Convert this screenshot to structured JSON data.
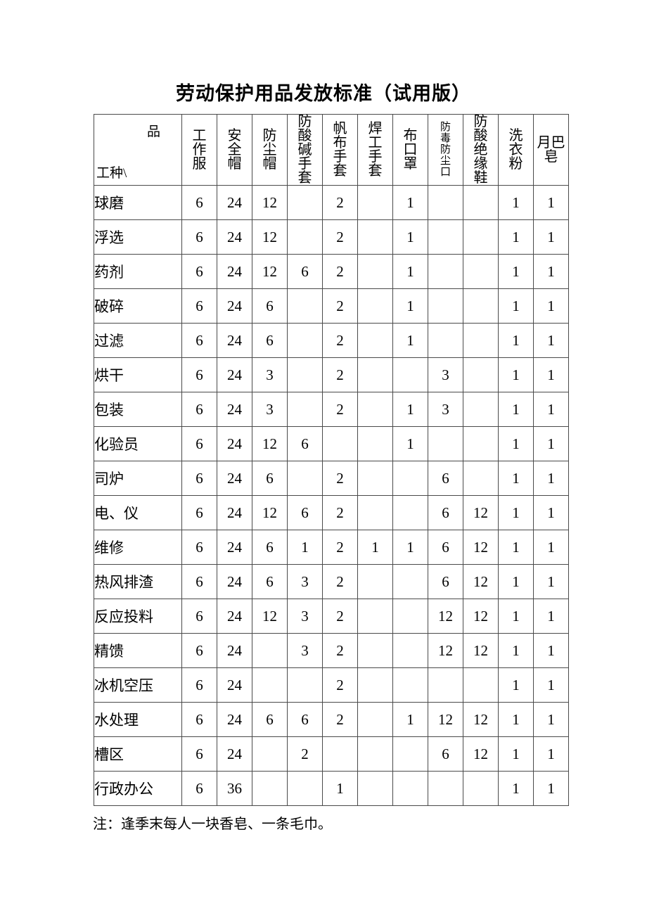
{
  "title": "劳动保护用品发放标准（试用版）",
  "note": "注：逢季末每人一块香皂、一条毛巾。",
  "table": {
    "corner": {
      "top_right": "品",
      "bottom_left": "工种\\"
    },
    "columns": [
      {
        "name": "工作服",
        "text": "工\n作\n服",
        "small": false
      },
      {
        "name": "安全帽",
        "text": "安\n全\n帽",
        "small": false
      },
      {
        "name": "防尘帽",
        "text": "防\n尘\n帽",
        "small": false
      },
      {
        "name": "防酸碱手套",
        "text": "防\n酸\n碱\n手\n套",
        "small": false
      },
      {
        "name": "帆布手套",
        "text": "帆\n布\n手\n套",
        "small": false
      },
      {
        "name": "焊工手套",
        "text": "焊\n工\n手\n套",
        "small": false
      },
      {
        "name": "布口罩",
        "text": "布\n口\n罩",
        "small": false
      },
      {
        "name": "防毒防尘口",
        "text": "防\n毒\n防\n尘\n口",
        "small": true
      },
      {
        "name": "防酸绝缘鞋",
        "text": "防\n酸\n绝\n缘\n鞋",
        "small": false
      },
      {
        "name": "洗衣粉",
        "text": "洗\n衣\n粉",
        "small": false
      },
      {
        "name": "月巴皂",
        "text": "月巴\n皂",
        "small": false
      }
    ],
    "rows": [
      {
        "label": "球磨",
        "values": [
          "6",
          "24",
          "12",
          "",
          "2",
          "",
          "1",
          "",
          "",
          "1",
          "1"
        ]
      },
      {
        "label": "浮选",
        "values": [
          "6",
          "24",
          "12",
          "",
          "2",
          "",
          "1",
          "",
          "",
          "1",
          "1"
        ]
      },
      {
        "label": "药剂",
        "values": [
          "6",
          "24",
          "12",
          "6",
          "2",
          "",
          "1",
          "",
          "",
          "1",
          "1"
        ]
      },
      {
        "label": "破碎",
        "values": [
          "6",
          "24",
          "6",
          "",
          "2",
          "",
          "1",
          "",
          "",
          "1",
          "1"
        ]
      },
      {
        "label": "过滤",
        "values": [
          "6",
          "24",
          "6",
          "",
          "2",
          "",
          "1",
          "",
          "",
          "1",
          "1"
        ]
      },
      {
        "label": "烘干",
        "values": [
          "6",
          "24",
          "3",
          "",
          "2",
          "",
          "",
          "3",
          "",
          "1",
          "1"
        ]
      },
      {
        "label": "包装",
        "values": [
          "6",
          "24",
          "3",
          "",
          "2",
          "",
          "1",
          "3",
          "",
          "1",
          "1"
        ]
      },
      {
        "label": "化验员",
        "values": [
          "6",
          "24",
          "12",
          "6",
          "",
          "",
          "1",
          "",
          "",
          "1",
          "1"
        ]
      },
      {
        "label": "司炉",
        "values": [
          "6",
          "24",
          "6",
          "",
          "2",
          "",
          "",
          "6",
          "",
          "1",
          "1"
        ]
      },
      {
        "label": "电、仪",
        "values": [
          "6",
          "24",
          "12",
          "6",
          "2",
          "",
          "",
          "6",
          "12",
          "1",
          "1"
        ]
      },
      {
        "label": "维修",
        "values": [
          "6",
          "24",
          "6",
          "1",
          "2",
          "1",
          "1",
          "6",
          "12",
          "1",
          "1"
        ]
      },
      {
        "label": "热风排渣",
        "values": [
          "6",
          "24",
          "6",
          "3",
          "2",
          "",
          "",
          "6",
          "12",
          "1",
          "1"
        ]
      },
      {
        "label": "反应投料",
        "values": [
          "6",
          "24",
          "12",
          "3",
          "2",
          "",
          "",
          "12",
          "12",
          "1",
          "1"
        ]
      },
      {
        "label": "精馈",
        "values": [
          "6",
          "24",
          "",
          "3",
          "2",
          "",
          "",
          "12",
          "12",
          "1",
          "1"
        ]
      },
      {
        "label": "冰机空压",
        "values": [
          "6",
          "24",
          "",
          "",
          "2",
          "",
          "",
          "",
          "",
          "1",
          "1"
        ]
      },
      {
        "label": "水处理",
        "values": [
          "6",
          "24",
          "6",
          "6",
          "2",
          "",
          "1",
          "12",
          "12",
          "1",
          "1"
        ]
      },
      {
        "label": "槽区",
        "values": [
          "6",
          "24",
          "",
          "2",
          "",
          "",
          "",
          "6",
          "12",
          "1",
          "1"
        ]
      },
      {
        "label": "行政办公",
        "values": [
          "6",
          "36",
          "",
          "",
          "1",
          "",
          "",
          "",
          "",
          "1",
          "1"
        ]
      }
    ]
  }
}
